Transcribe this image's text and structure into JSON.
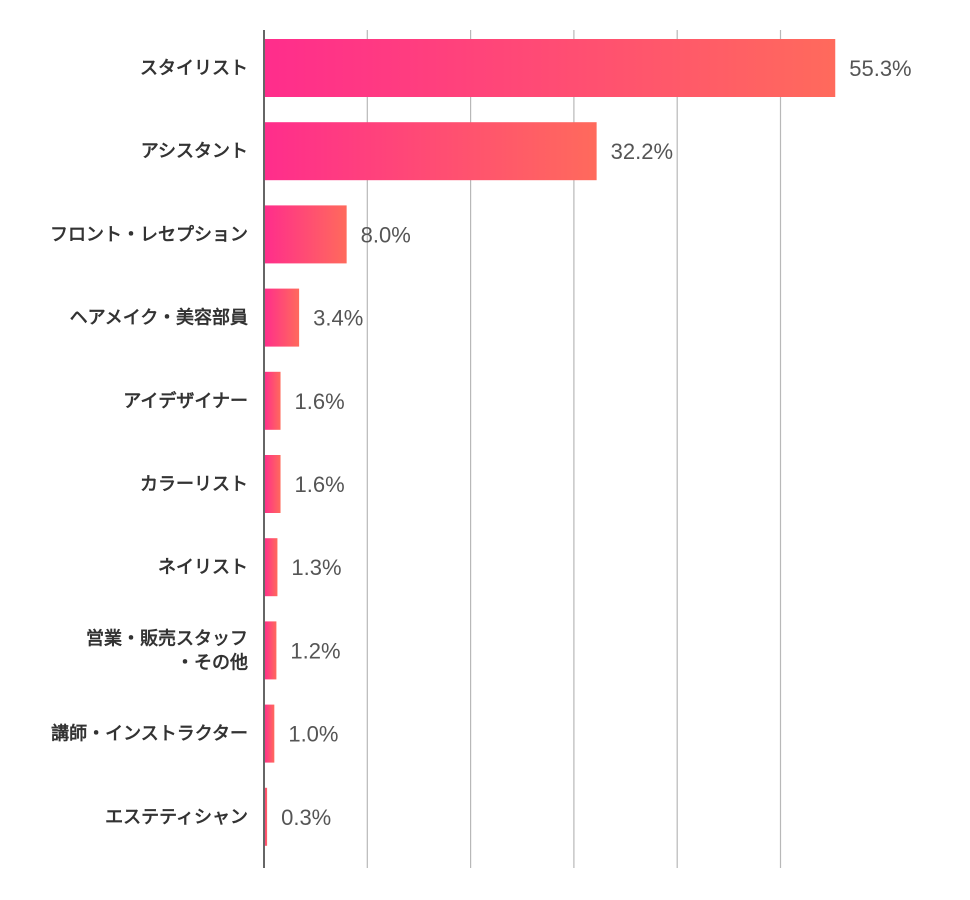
{
  "chart_data": {
    "type": "bar",
    "orientation": "horizontal",
    "title": "",
    "xlabel": "",
    "ylabel": "",
    "xlim": [
      0,
      60
    ],
    "grid": true,
    "legend": "none",
    "categories": [
      [
        "スタイリスト"
      ],
      [
        "アシスタント"
      ],
      [
        "フロント・レセプション"
      ],
      [
        "ヘアメイク・美容部員"
      ],
      [
        "アイデザイナー"
      ],
      [
        "カラーリスト"
      ],
      [
        "ネイリスト"
      ],
      [
        "営業・販売スタッフ",
        "・その他"
      ],
      [
        "講師・インストラクター"
      ],
      [
        "エステティシャン"
      ]
    ],
    "values": [
      55.3,
      32.2,
      8.0,
      3.4,
      1.6,
      1.6,
      1.3,
      1.2,
      1.0,
      0.3
    ],
    "value_labels": [
      "55.3%",
      "32.2%",
      "8.0%",
      "3.4%",
      "1.6%",
      "1.6%",
      "1.3%",
      "1.2%",
      "1.0%",
      "0.3%"
    ],
    "colors": {
      "gradient_start": "#ff2d8c",
      "gradient_end": "#ff6a5c"
    }
  }
}
